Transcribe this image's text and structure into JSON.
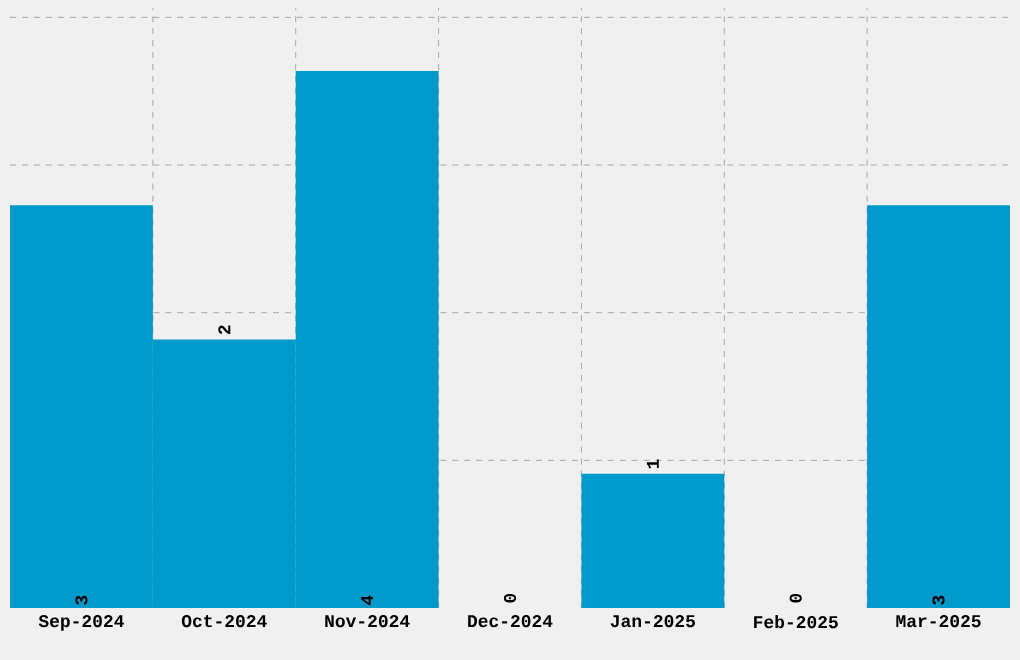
{
  "chart_data": {
    "type": "bar",
    "categories": [
      "Sep-2024",
      "Oct-2024",
      "Nov-2024",
      "Dec-2024",
      "Jan-2025",
      "Feb-2025",
      "Mar-2025"
    ],
    "values": [
      3,
      2,
      4,
      0,
      1,
      0,
      3
    ],
    "color": "#0099cc",
    "ylim": [
      0,
      4.47
    ],
    "yticks": [
      {
        "value": 1.1,
        "label": null
      },
      {
        "value": 2.2,
        "label": null
      },
      {
        "value": 3.3,
        "label": null
      },
      {
        "value": 4.4,
        "label": null
      }
    ],
    "tick_labels": "x",
    "grid": true,
    "data_labels": true
  }
}
